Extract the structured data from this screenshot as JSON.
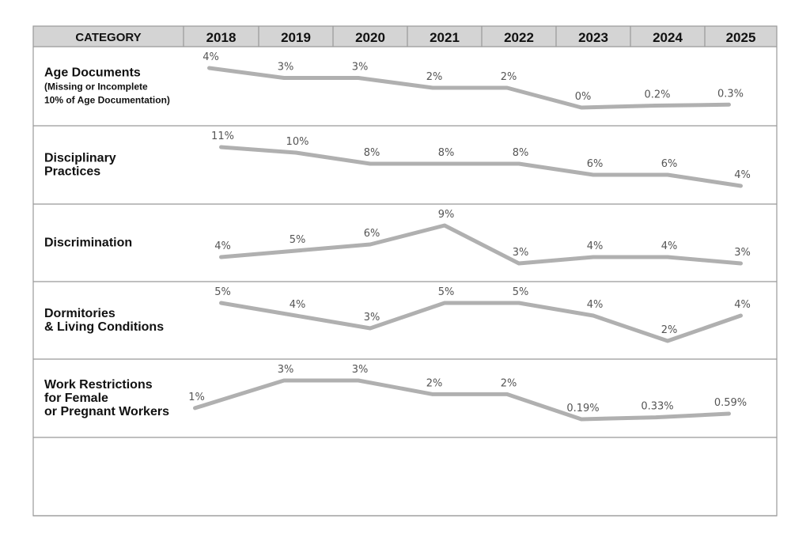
{
  "chart_data": {
    "type": "line",
    "header": {
      "category_label": "CATEGORY",
      "years": [
        "2018",
        "2019",
        "2020",
        "2021",
        "2022",
        "2023",
        "2024",
        "2025"
      ]
    },
    "rows": [
      {
        "title_lines": [
          "Age Documents"
        ],
        "note_lines": [
          "(Missing or Incomplete",
          "10% of Age Documentation)"
        ],
        "values": [
          4,
          3,
          3,
          2,
          2,
          0,
          0.2,
          0.3
        ],
        "labels": [
          "4%",
          "3%",
          "3%",
          "2%",
          "2%",
          "0%",
          "0.2%",
          "0.3%"
        ]
      },
      {
        "title_lines": [
          "Disciplinary",
          "Practices"
        ],
        "note_lines": [],
        "values": [
          11,
          10,
          8,
          8,
          8,
          6,
          6,
          4
        ],
        "labels": [
          "11%",
          "10%",
          "8%",
          "8%",
          "8%",
          "6%",
          "6%",
          "4%"
        ]
      },
      {
        "title_lines": [
          "Discrimination"
        ],
        "note_lines": [],
        "values": [
          4,
          5,
          6,
          9,
          3,
          4,
          4,
          3
        ],
        "labels": [
          "4%",
          "5%",
          "6%",
          "9%",
          "3%",
          "4%",
          "4%",
          "3%"
        ]
      },
      {
        "title_lines": [
          "Dormitories",
          "& Living Conditions"
        ],
        "note_lines": [],
        "values": [
          5,
          4,
          3,
          5,
          5,
          4,
          2,
          4
        ],
        "labels": [
          "5%",
          "4%",
          "3%",
          "5%",
          "5%",
          "4%",
          "2%",
          "4%"
        ]
      },
      {
        "title_lines": [
          "Work Restrictions",
          "for Female",
          "or Pregnant Workers"
        ],
        "note_lines": [],
        "values": [
          1,
          3,
          3,
          2,
          2,
          0.19,
          0.33,
          0.59
        ],
        "labels": [
          "1%",
          "3%",
          "3%",
          "2%",
          "2%",
          "0.19%",
          "0.33%",
          "0.59%"
        ]
      }
    ],
    "colors": {
      "header_bg": "#d4d4d4",
      "grid": "#999999",
      "line": "#b0b0b0",
      "label": "#555555"
    }
  }
}
